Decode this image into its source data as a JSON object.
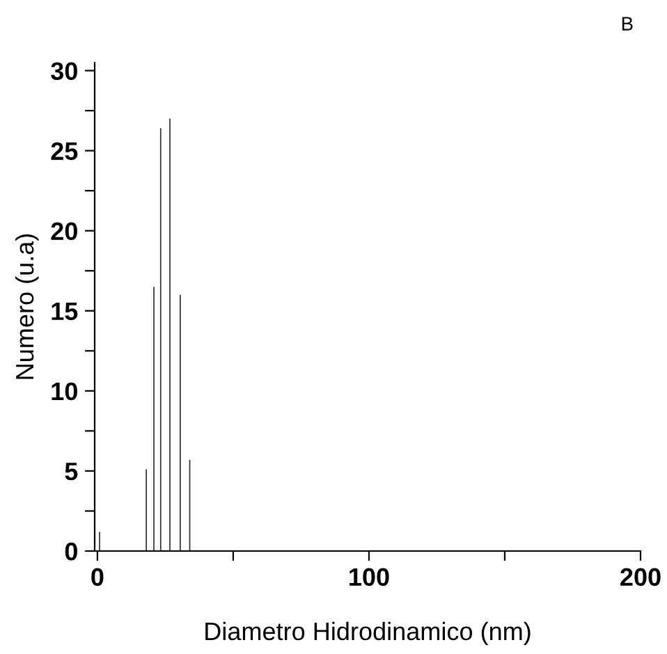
{
  "chart_data": {
    "type": "bar",
    "title": "B",
    "xlabel": "Diametro Hidrodinamico (nm)",
    "ylabel": "Numero (u.a)",
    "x": [
      0.8,
      18.0,
      20.8,
      23.3,
      26.7,
      30.5,
      34.0
    ],
    "values": [
      1.2,
      5.1,
      16.5,
      26.4,
      27.0,
      16.0,
      5.7
    ],
    "color": "#333333",
    "xlim": [
      -1,
      200
    ],
    "ylim": [
      0,
      30.5
    ],
    "xticks": [
      0,
      {
        "value": 50,
        "label": null
      },
      100,
      {
        "value": 150,
        "label": null
      },
      200
    ],
    "yticks": [
      0,
      {
        "value": 2.5,
        "label": null
      },
      5,
      {
        "value": 7.5,
        "label": null
      },
      10,
      {
        "value": 12.5,
        "label": null
      },
      15,
      {
        "value": 17.5,
        "label": null
      },
      20,
      {
        "value": 22.5,
        "label": null
      },
      25,
      {
        "value": 27.5,
        "label": null
      },
      30
    ],
    "grid": false,
    "legend": false
  }
}
